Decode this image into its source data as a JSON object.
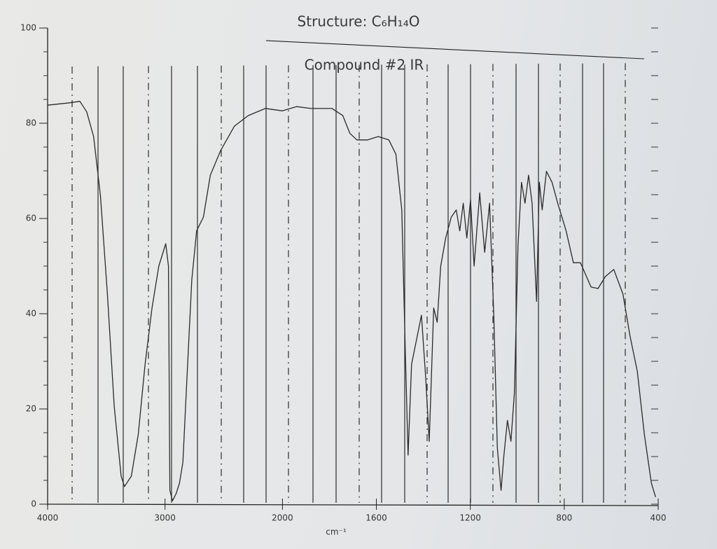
{
  "chart_data": {
    "type": "line",
    "title": "Structure: C₆H₁₄O",
    "subtitle": "Compound #2 IR",
    "xlabel": "cm⁻¹",
    "color": "#2a2a2a",
    "xlim": [
      4000,
      400
    ],
    "xscale_break": 2000,
    "xticks": [
      4000,
      3000,
      2000,
      1600,
      1200,
      800,
      400
    ],
    "ylim": [
      0,
      100
    ],
    "yticks": [
      0,
      20,
      40,
      60,
      80,
      100
    ],
    "x": [
      4000,
      3813,
      3725,
      3667,
      3608,
      3550,
      3491,
      3433,
      3374,
      3345,
      3287,
      3228,
      3170,
      3111,
      3053,
      2994,
      2971,
      2959,
      2936,
      2906,
      2877,
      2848,
      2819,
      2772,
      2731,
      2673,
      2614,
      2526,
      2409,
      2292,
      2146,
      2000,
      1940,
      1879,
      1789,
      1743,
      1713,
      1683,
      1637,
      1592,
      1547,
      1517,
      1492,
      1477,
      1465,
      1450,
      1426,
      1408,
      1390,
      1375,
      1356,
      1341,
      1326,
      1305,
      1281,
      1260,
      1245,
      1230,
      1215,
      1199,
      1184,
      1160,
      1139,
      1118,
      1100,
      1085,
      1069,
      1057,
      1042,
      1027,
      1012,
      997,
      982,
      967,
      952,
      937,
      918,
      906,
      894,
      876,
      852,
      828,
      792,
      761,
      731,
      686,
      656,
      625,
      589,
      550,
      520,
      489,
      459,
      429,
      411
    ],
    "values": [
      83.8,
      84.3,
      84.6,
      82.4,
      77.2,
      64.7,
      44.1,
      20.6,
      5.9,
      3.7,
      5.9,
      14.7,
      29.4,
      41.2,
      50,
      54.7,
      50,
      2.9,
      0.7,
      2.2,
      4.4,
      8.8,
      23.5,
      47.1,
      57.4,
      60.3,
      69.1,
      74.3,
      79.4,
      81.6,
      83.1,
      82.6,
      83.5,
      83.1,
      83.1,
      81.6,
      77.9,
      76.5,
      76.5,
      77.2,
      76.5,
      73.5,
      61.8,
      32.4,
      10.3,
      29.4,
      35.3,
      39.7,
      26.5,
      13.2,
      41.2,
      38.2,
      50,
      55.9,
      60.3,
      61.8,
      57.4,
      63.2,
      55.9,
      63.9,
      50,
      65.4,
      52.9,
      63.2,
      39.7,
      11.8,
      2.9,
      10.3,
      17.6,
      13.2,
      23.5,
      54.4,
      67.6,
      63.2,
      69.1,
      63.2,
      42.6,
      67.6,
      61.8,
      69.9,
      67.6,
      63.2,
      57.4,
      50.7,
      50.7,
      45.6,
      45.3,
      47.8,
      49.3,
      44.1,
      35.3,
      27.9,
      14.7,
      4.4,
      1.5
    ]
  }
}
